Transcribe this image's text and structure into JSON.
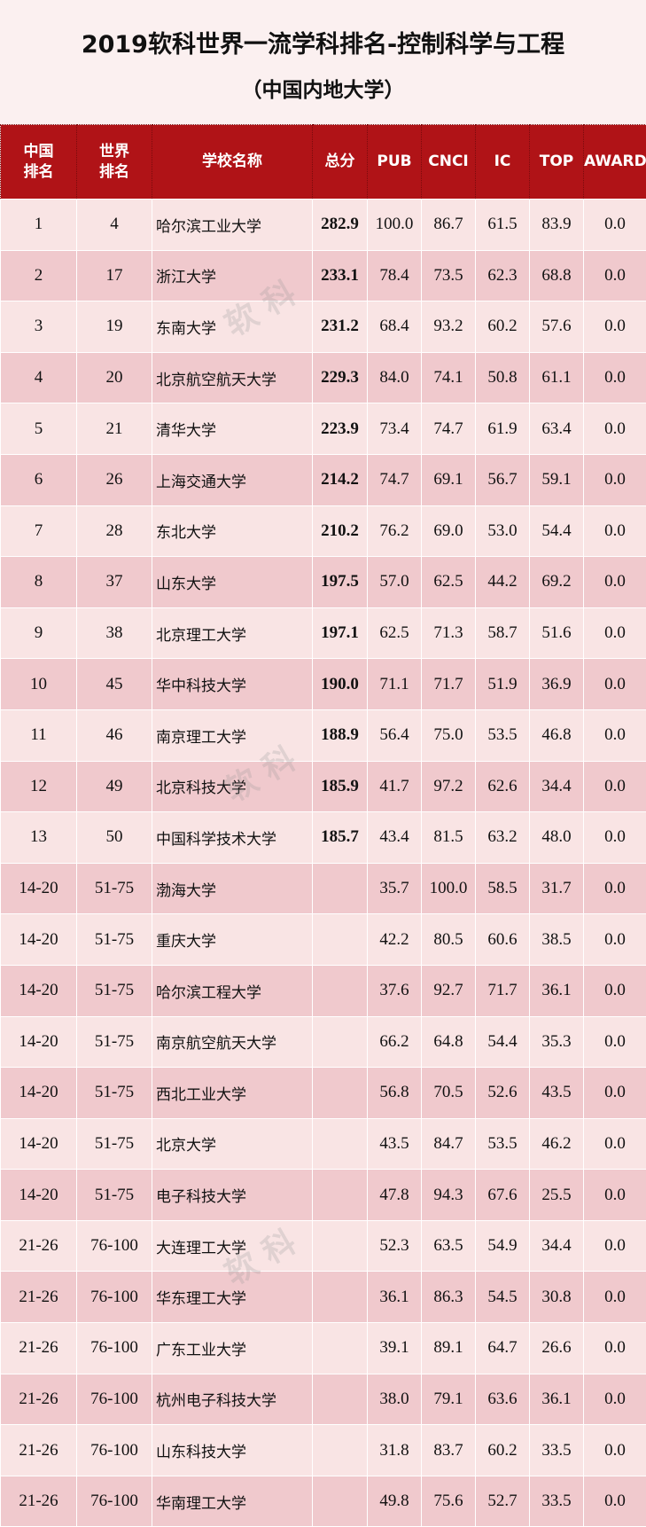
{
  "title": "2019软科世界一流学科排名-控制科学与工程",
  "subtitle": "（中国内地大学）",
  "watermark": "软科 id:zuihaodaxue",
  "colors": {
    "header": "#b01317",
    "row_light": "#f9e4e4",
    "row_dark": "#f0c9cd"
  },
  "headers": [
    "中国排名",
    "世界排名",
    "学校名称",
    "总分",
    "PUB",
    "CNCI",
    "IC",
    "TOP",
    "AWARD"
  ],
  "rows": [
    [
      "1",
      "4",
      "哈尔滨工业大学",
      "282.9",
      "100.0",
      "86.7",
      "61.5",
      "83.9",
      "0.0"
    ],
    [
      "2",
      "17",
      "浙江大学",
      "233.1",
      "78.4",
      "73.5",
      "62.3",
      "68.8",
      "0.0"
    ],
    [
      "3",
      "19",
      "东南大学",
      "231.2",
      "68.4",
      "93.2",
      "60.2",
      "57.6",
      "0.0"
    ],
    [
      "4",
      "20",
      "北京航空航天大学",
      "229.3",
      "84.0",
      "74.1",
      "50.8",
      "61.1",
      "0.0"
    ],
    [
      "5",
      "21",
      "清华大学",
      "223.9",
      "73.4",
      "74.7",
      "61.9",
      "63.4",
      "0.0"
    ],
    [
      "6",
      "26",
      "上海交通大学",
      "214.2",
      "74.7",
      "69.1",
      "56.7",
      "59.1",
      "0.0"
    ],
    [
      "7",
      "28",
      "东北大学",
      "210.2",
      "76.2",
      "69.0",
      "53.0",
      "54.4",
      "0.0"
    ],
    [
      "8",
      "37",
      "山东大学",
      "197.5",
      "57.0",
      "62.5",
      "44.2",
      "69.2",
      "0.0"
    ],
    [
      "9",
      "38",
      "北京理工大学",
      "197.1",
      "62.5",
      "71.3",
      "58.7",
      "51.6",
      "0.0"
    ],
    [
      "10",
      "45",
      "华中科技大学",
      "190.0",
      "71.1",
      "71.7",
      "51.9",
      "36.9",
      "0.0"
    ],
    [
      "11",
      "46",
      "南京理工大学",
      "188.9",
      "56.4",
      "75.0",
      "53.5",
      "46.8",
      "0.0"
    ],
    [
      "12",
      "49",
      "北京科技大学",
      "185.9",
      "41.7",
      "97.2",
      "62.6",
      "34.4",
      "0.0"
    ],
    [
      "13",
      "50",
      "中国科学技术大学",
      "185.7",
      "43.4",
      "81.5",
      "63.2",
      "48.0",
      "0.0"
    ],
    [
      "14-20",
      "51-75",
      "渤海大学",
      "",
      "35.7",
      "100.0",
      "58.5",
      "31.7",
      "0.0"
    ],
    [
      "14-20",
      "51-75",
      "重庆大学",
      "",
      "42.2",
      "80.5",
      "60.6",
      "38.5",
      "0.0"
    ],
    [
      "14-20",
      "51-75",
      "哈尔滨工程大学",
      "",
      "37.6",
      "92.7",
      "71.7",
      "36.1",
      "0.0"
    ],
    [
      "14-20",
      "51-75",
      "南京航空航天大学",
      "",
      "66.2",
      "64.8",
      "54.4",
      "35.3",
      "0.0"
    ],
    [
      "14-20",
      "51-75",
      "西北工业大学",
      "",
      "56.8",
      "70.5",
      "52.6",
      "43.5",
      "0.0"
    ],
    [
      "14-20",
      "51-75",
      "北京大学",
      "",
      "43.5",
      "84.7",
      "53.5",
      "46.2",
      "0.0"
    ],
    [
      "14-20",
      "51-75",
      "电子科技大学",
      "",
      "47.8",
      "94.3",
      "67.6",
      "25.5",
      "0.0"
    ],
    [
      "21-26",
      "76-100",
      "大连理工大学",
      "",
      "52.3",
      "63.5",
      "54.9",
      "34.4",
      "0.0"
    ],
    [
      "21-26",
      "76-100",
      "华东理工大学",
      "",
      "36.1",
      "86.3",
      "54.5",
      "30.8",
      "0.0"
    ],
    [
      "21-26",
      "76-100",
      "广东工业大学",
      "",
      "39.1",
      "89.1",
      "64.7",
      "26.6",
      "0.0"
    ],
    [
      "21-26",
      "76-100",
      "杭州电子科技大学",
      "",
      "38.0",
      "79.1",
      "63.6",
      "36.1",
      "0.0"
    ],
    [
      "21-26",
      "76-100",
      "山东科技大学",
      "",
      "31.8",
      "83.7",
      "60.2",
      "33.5",
      "0.0"
    ],
    [
      "21-26",
      "76-100",
      "华南理工大学",
      "",
      "49.8",
      "75.6",
      "52.7",
      "33.5",
      "0.0"
    ]
  ]
}
